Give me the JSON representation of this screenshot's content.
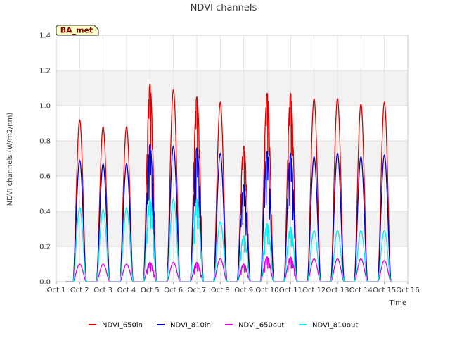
{
  "chart_data": {
    "type": "line",
    "title": "NDVI channels",
    "xlabel": "Time",
    "ylabel": "NDVI channels (W/m2/nm)",
    "badge": "BA_met",
    "ylim": [
      0,
      1.4
    ],
    "yticks": [
      "0.0",
      "0.2",
      "0.4",
      "0.6",
      "0.8",
      "1.0",
      "1.2",
      "1.4"
    ],
    "xlim": [
      1,
      16
    ],
    "xticks": [
      "Oct 1",
      "Oct 2",
      "Oct 3",
      "Oct 4",
      "Oct 5",
      "Oct 6",
      "Oct 7",
      "Oct 8",
      "Oct 9",
      "Oct 10",
      "Oct 11",
      "Oct 12",
      "Oct 13",
      "Oct 14",
      "Oct 15",
      "Oct 16"
    ],
    "day_centers": [
      2.0,
      3.0,
      4.0,
      5.0,
      6.0,
      7.0,
      8.0,
      9.0,
      10.0,
      11.0,
      12.0,
      13.0,
      14.0,
      15.0
    ],
    "series": [
      {
        "name": "NDVI_650in",
        "color": "#dd0000",
        "peaks": [
          0.92,
          0.88,
          0.88,
          1.12,
          1.09,
          1.05,
          1.02,
          0.77,
          1.07,
          1.07,
          1.04,
          1.04,
          1.01,
          1.02
        ]
      },
      {
        "name": "NDVI_810in",
        "color": "#0000cc",
        "peaks": [
          0.69,
          0.67,
          0.67,
          0.78,
          0.77,
          0.76,
          0.73,
          0.55,
          0.74,
          0.73,
          0.71,
          0.73,
          0.71,
          0.72
        ]
      },
      {
        "name": "NDVI_650out",
        "color": "#dd00dd",
        "peaks": [
          0.1,
          0.1,
          0.1,
          0.11,
          0.11,
          0.11,
          0.13,
          0.1,
          0.14,
          0.14,
          0.13,
          0.13,
          0.13,
          0.12
        ]
      },
      {
        "name": "NDVI_810out",
        "color": "#00eeee",
        "peaks": [
          0.42,
          0.41,
          0.42,
          0.47,
          0.47,
          0.47,
          0.34,
          0.26,
          0.33,
          0.31,
          0.29,
          0.29,
          0.29,
          0.29
        ]
      }
    ]
  }
}
